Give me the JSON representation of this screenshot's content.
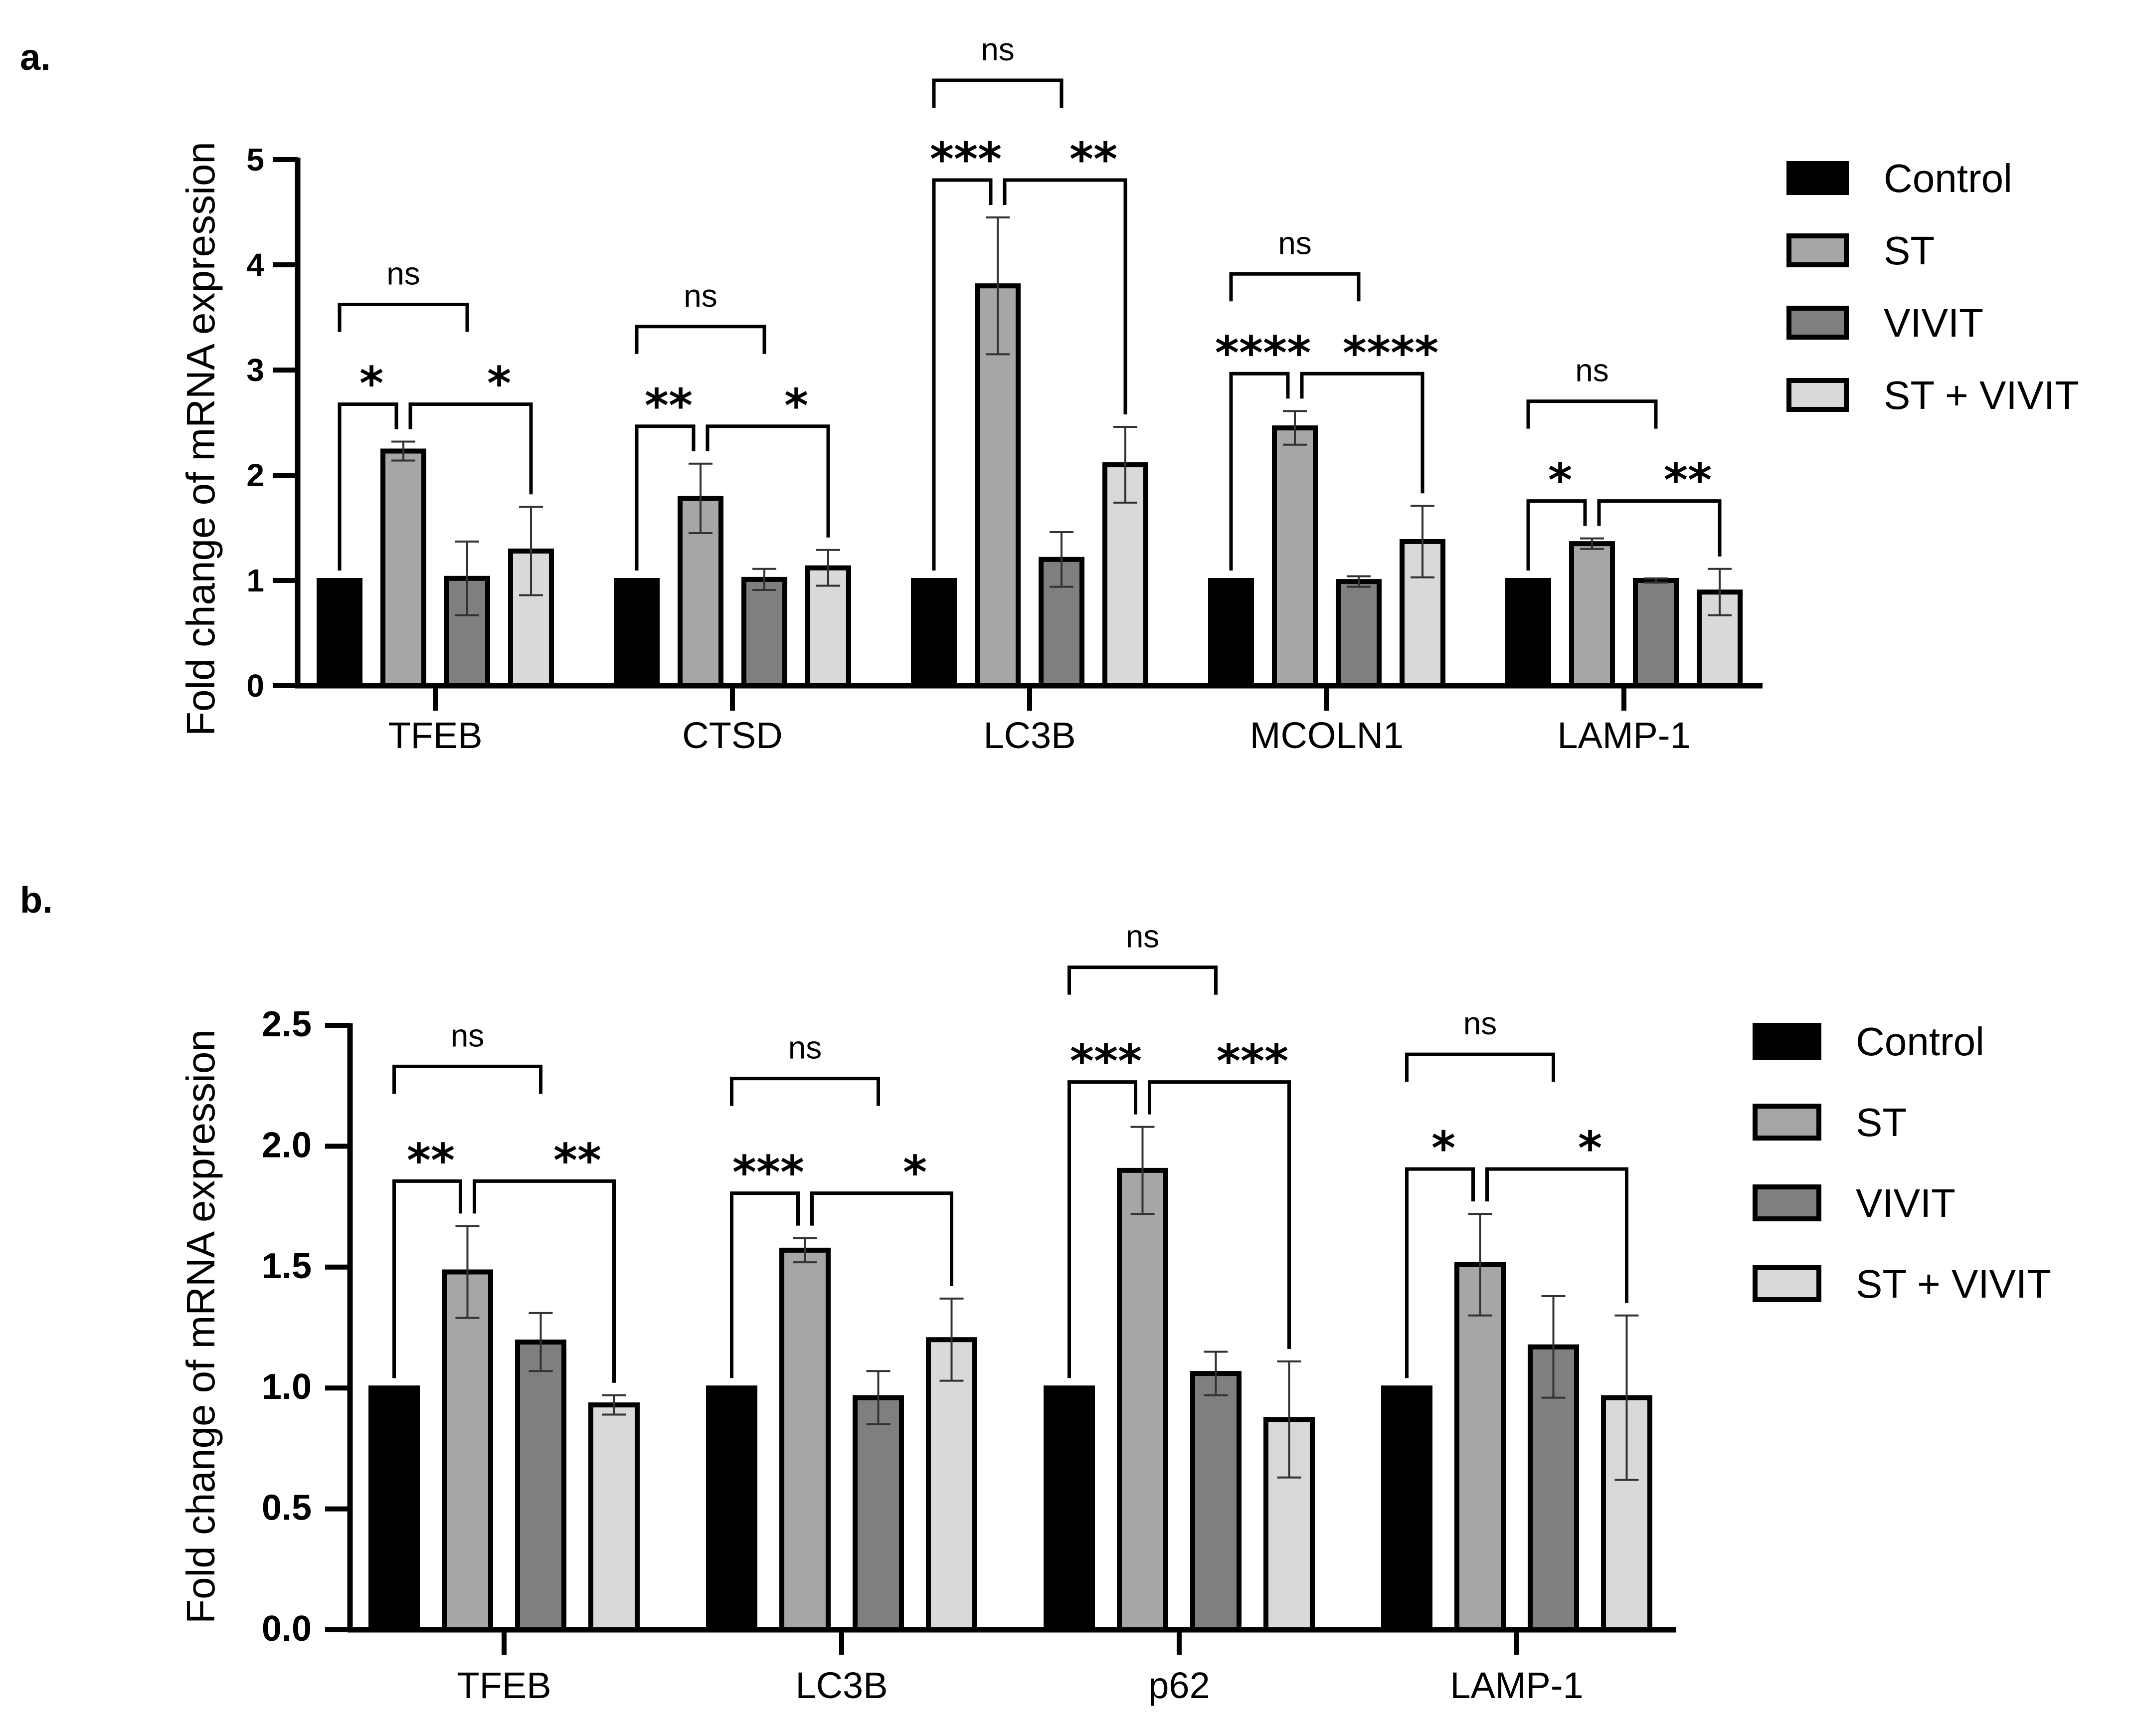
{
  "figure": {
    "panels": [
      {
        "panel_label": "a.",
        "legend": [
          "Control",
          "ST",
          "VIVIT",
          "ST + VIVIT"
        ]
      },
      {
        "panel_label": "b.",
        "legend": [
          "Control",
          "ST",
          "VIVIT",
          "ST + VIVIT"
        ]
      }
    ]
  },
  "chart_data": [
    {
      "type": "bar",
      "panel": "a.",
      "title": "",
      "xlabel": "",
      "ylabel": "Fold change  of mRNA expression",
      "ylim": [
        0,
        5
      ],
      "yticks": [
        "0",
        "1",
        "2",
        "3",
        "4",
        "5"
      ],
      "categories": [
        "TFEB",
        "CTSD",
        "LC3B",
        "MCOLN1",
        "LAMP-1"
      ],
      "series": [
        {
          "name": "Control",
          "color": "#000000",
          "values": [
            1.0,
            1.0,
            1.0,
            1.0,
            1.0
          ],
          "errors": [
            0,
            0,
            0,
            0,
            0
          ]
        },
        {
          "name": "ST",
          "color": "#a6a6a6",
          "values": [
            2.23,
            1.78,
            3.8,
            2.45,
            1.35
          ],
          "errors": [
            0.09,
            0.33,
            0.65,
            0.16,
            0.05
          ]
        },
        {
          "name": "VIVIT",
          "color": "#7f7f7f",
          "values": [
            1.02,
            1.01,
            1.2,
            0.99,
            1.0
          ],
          "errors": [
            0.35,
            0.1,
            0.26,
            0.05,
            0.02
          ]
        },
        {
          "name": "ST + VIVIT",
          "color": "#d9d9d9",
          "values": [
            1.28,
            1.12,
            2.1,
            1.37,
            0.89
          ],
          "errors": [
            0.42,
            0.17,
            0.36,
            0.34,
            0.22
          ]
        }
      ],
      "significance": [
        {
          "category": "TFEB",
          "inner_left": "*",
          "inner_right": "*",
          "outer": "ns"
        },
        {
          "category": "CTSD",
          "inner_left": "**",
          "inner_right": "*",
          "outer": "ns"
        },
        {
          "category": "LC3B",
          "inner_left": "***",
          "inner_right": "**",
          "outer": "ns"
        },
        {
          "category": "MCOLN1",
          "inner_left": "****",
          "inner_right": "****",
          "outer": "ns"
        },
        {
          "category": "LAMP-1",
          "inner_left": "*",
          "inner_right": "**",
          "outer": "ns"
        }
      ]
    },
    {
      "type": "bar",
      "panel": "b.",
      "title": "",
      "xlabel": "",
      "ylabel": "Fold change  of mRNA expression",
      "ylim": [
        0,
        2.5
      ],
      "yticks": [
        "0.0",
        "0.5",
        "1.0",
        "1.5",
        "2.0",
        "2.5"
      ],
      "categories": [
        "TFEB",
        "LC3B",
        "p62",
        "LAMP-1"
      ],
      "series": [
        {
          "name": "Control",
          "color": "#000000",
          "values": [
            1.0,
            1.0,
            1.0,
            1.0
          ],
          "errors": [
            0,
            0,
            0,
            0
          ]
        },
        {
          "name": "ST",
          "color": "#a6a6a6",
          "values": [
            1.48,
            1.57,
            1.9,
            1.51
          ],
          "errors": [
            0.19,
            0.05,
            0.18,
            0.21
          ]
        },
        {
          "name": "VIVIT",
          "color": "#7f7f7f",
          "values": [
            1.19,
            0.96,
            1.06,
            1.17
          ],
          "errors": [
            0.12,
            0.11,
            0.09,
            0.21
          ]
        },
        {
          "name": "ST + VIVIT",
          "color": "#d9d9d9",
          "values": [
            0.93,
            1.2,
            0.87,
            0.96
          ],
          "errors": [
            0.04,
            0.17,
            0.24,
            0.34
          ]
        }
      ],
      "significance": [
        {
          "category": "TFEB",
          "inner_left": "**",
          "inner_right": "**",
          "outer": "ns"
        },
        {
          "category": "LC3B",
          "inner_left": "***",
          "inner_right": "*",
          "outer": "ns"
        },
        {
          "category": "p62",
          "inner_left": "***",
          "inner_right": "***",
          "outer": "ns"
        },
        {
          "category": "LAMP-1",
          "inner_left": "*",
          "inner_right": "*",
          "outer": "ns"
        }
      ]
    }
  ]
}
